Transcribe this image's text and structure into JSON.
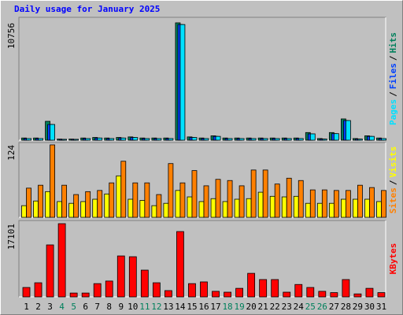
{
  "chart_data": [
    {
      "type": "bar",
      "title": "Daily usage for January 2025",
      "legend_separator": "/",
      "ylim": [
        0,
        11260
      ],
      "yticks": [
        10756
      ],
      "series": [
        {
          "name": "Hits",
          "color": "#00805c",
          "values": [
            200,
            200,
            1730,
            100,
            100,
            200,
            250,
            200,
            250,
            300,
            200,
            200,
            200,
            10756,
            300,
            200,
            400,
            200,
            200,
            200,
            200,
            200,
            200,
            200,
            700,
            150,
            700,
            1950,
            150,
            400,
            200
          ]
        },
        {
          "name": "Files",
          "color": "#0040ff",
          "values": [
            150,
            150,
            1440,
            80,
            80,
            150,
            200,
            150,
            200,
            250,
            150,
            150,
            150,
            10600,
            250,
            150,
            350,
            150,
            150,
            150,
            150,
            150,
            150,
            150,
            580,
            100,
            600,
            1800,
            100,
            350,
            150
          ]
        },
        {
          "name": "Pages",
          "color": "#00e0ff",
          "values": [
            150,
            150,
            1440,
            80,
            80,
            150,
            200,
            150,
            200,
            250,
            150,
            150,
            150,
            10600,
            250,
            150,
            350,
            150,
            150,
            150,
            150,
            150,
            150,
            150,
            580,
            100,
            600,
            1800,
            100,
            350,
            150
          ]
        }
      ]
    },
    {
      "type": "bar",
      "legend_separator": "/",
      "ylim": [
        0,
        128
      ],
      "yticks": [
        124
      ],
      "series": [
        {
          "name": "Visits",
          "color": "#ffff00",
          "values": [
            20,
            28,
            44,
            27,
            24,
            27,
            31,
            40,
            71,
            31,
            29,
            20,
            24,
            46,
            35,
            27,
            32,
            27,
            31,
            32,
            43,
            36,
            35,
            36,
            24,
            24,
            24,
            31,
            31,
            31,
            27
          ]
        },
        {
          "name": "Sites",
          "color": "#ff8000",
          "values": [
            50,
            55,
            124,
            55,
            39,
            44,
            46,
            59,
            96,
            59,
            59,
            39,
            92,
            59,
            80,
            54,
            65,
            63,
            54,
            81,
            81,
            57,
            67,
            63,
            47,
            47,
            46,
            46,
            55,
            51,
            46
          ]
        }
      ]
    },
    {
      "type": "bar",
      "ylim": [
        0,
        17840
      ],
      "yticks": [
        17101
      ],
      "series": [
        {
          "name": "KBytes",
          "color": "#ff0000",
          "values": [
            2200,
            3300,
            12140,
            17101,
            900,
            900,
            3100,
            3700,
            9560,
            9380,
            6250,
            3300,
            1470,
            15260,
            3100,
            3500,
            1300,
            1100,
            2000,
            5500,
            4050,
            4050,
            1100,
            2900,
            2200,
            1300,
            1000,
            4050,
            700,
            2000,
            1000
          ]
        }
      ],
      "categories": [
        "1",
        "2",
        "3",
        "4",
        "5",
        "6",
        "7",
        "8",
        "9",
        "10",
        "11",
        "12",
        "13",
        "14",
        "15",
        "16",
        "17",
        "18",
        "19",
        "20",
        "21",
        "22",
        "23",
        "24",
        "25",
        "26",
        "27",
        "28",
        "29",
        "30",
        "31"
      ],
      "category_colors": [
        "#000000",
        "#000000",
        "#000000",
        "#00805c",
        "#00805c",
        "#000000",
        "#000000",
        "#000000",
        "#000000",
        "#000000",
        "#00805c",
        "#00805c",
        "#000000",
        "#000000",
        "#000000",
        "#000000",
        "#000000",
        "#00805c",
        "#00805c",
        "#000000",
        "#000000",
        "#000000",
        "#000000",
        "#000000",
        "#00805c",
        "#00805c",
        "#000000",
        "#000000",
        "#000000",
        "#000000",
        "#000000"
      ]
    }
  ]
}
